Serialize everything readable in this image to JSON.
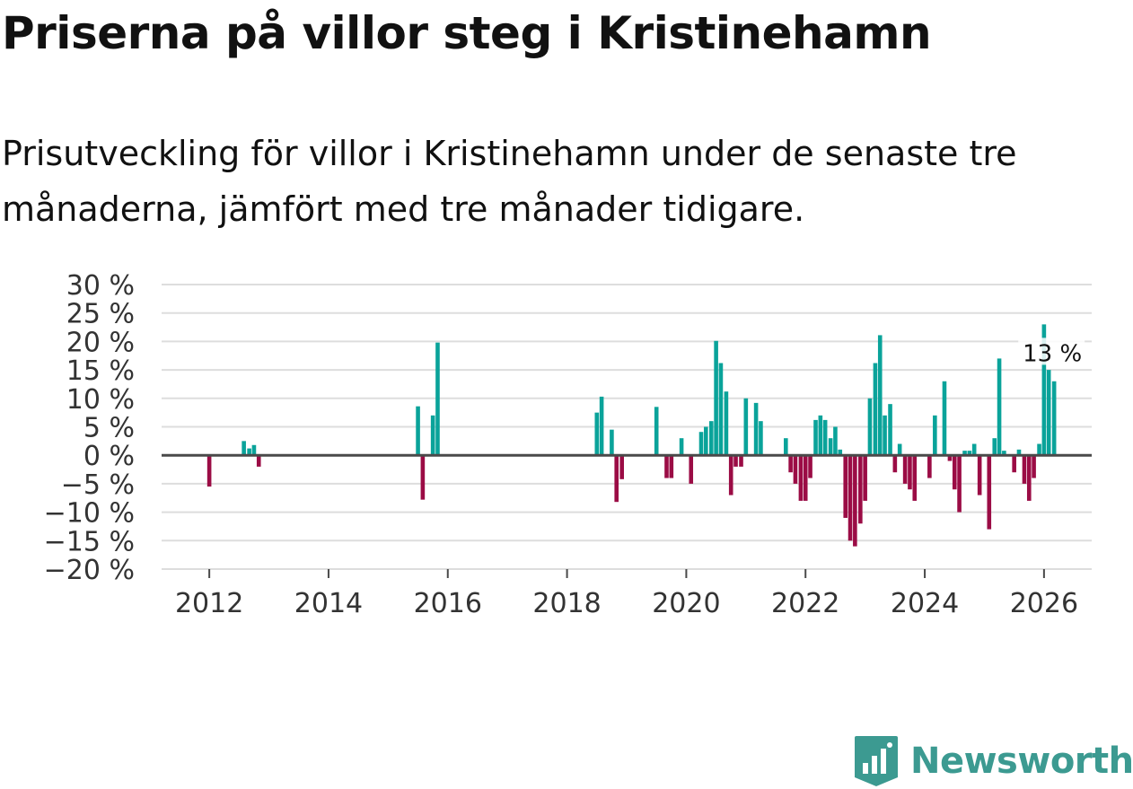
{
  "title": "Priserna på villor steg i Kristinehamn",
  "subtitle": "Prisutveckling för villor i Kristinehamn under de senaste tre månaderna, jämfört med tre månader tidigare.",
  "brand": {
    "name": "Newsworthy",
    "color": "#3c9a91"
  },
  "colors": {
    "positive": "#0aa39a",
    "negative": "#9b0c45",
    "grid": "#dddddd",
    "zero_line": "#4a4a4a",
    "axis_text": "#333333"
  },
  "chart_data": {
    "type": "bar",
    "title": "Priserna på villor steg i Kristinehamn",
    "xlabel": "",
    "ylabel": "",
    "ylim": [
      -20,
      30
    ],
    "yticks": [
      30,
      25,
      20,
      15,
      10,
      5,
      0,
      -5,
      -10,
      -15,
      -20
    ],
    "ytick_labels": [
      "30 %",
      "25 %",
      "20 %",
      "15 %",
      "10 %",
      "5 %",
      "0 %",
      "−5 %",
      "−10 %",
      "−15 %",
      "−20 %"
    ],
    "xlim": [
      2011.2,
      2026.8
    ],
    "xticks": [
      2012,
      2014,
      2016,
      2018,
      2020,
      2022,
      2024,
      2026
    ],
    "xtick_labels": [
      "2012",
      "2014",
      "2016",
      "2018",
      "2020",
      "2022",
      "2024",
      "2026"
    ],
    "grid": true,
    "annotation": {
      "text": "13 %",
      "x": 2026.08,
      "y": 13
    },
    "x": [
      2012.0,
      2012.58,
      2012.67,
      2012.75,
      2012.83,
      2015.5,
      2015.58,
      2015.75,
      2015.83,
      2018.5,
      2018.58,
      2018.75,
      2018.83,
      2018.92,
      2019.5,
      2019.67,
      2019.75,
      2019.92,
      2020.08,
      2020.25,
      2020.33,
      2020.42,
      2020.5,
      2020.58,
      2020.67,
      2020.75,
      2020.83,
      2020.92,
      2021.0,
      2021.08,
      2021.17,
      2021.25,
      2021.33,
      2021.67,
      2021.75,
      2021.83,
      2021.92,
      2022.0,
      2022.08,
      2022.17,
      2022.25,
      2022.33,
      2022.42,
      2022.5,
      2022.58,
      2022.67,
      2022.75,
      2022.83,
      2022.92,
      2023.0,
      2023.08,
      2023.17,
      2023.25,
      2023.33,
      2023.42,
      2023.5,
      2023.58,
      2023.67,
      2023.75,
      2023.83,
      2023.92,
      2024.08,
      2024.17,
      2024.33,
      2024.42,
      2024.5,
      2024.58,
      2024.67,
      2024.75,
      2024.83,
      2024.92,
      2025.08,
      2025.17,
      2025.25,
      2025.33,
      2025.5,
      2025.58,
      2025.67,
      2025.75,
      2025.83,
      2025.92,
      2026.0,
      2026.08,
      2026.17
    ],
    "values": [
      -5.5,
      2.5,
      1.2,
      1.8,
      -2.0,
      8.6,
      -7.8,
      7.0,
      19.8,
      7.5,
      10.3,
      4.5,
      -8.2,
      -4.2,
      8.5,
      -4.0,
      -4.0,
      3.0,
      -5.0,
      4.1,
      5.0,
      6.0,
      20.1,
      16.2,
      11.2,
      -7.0,
      -2.0,
      -2.0,
      10.0,
      0.0,
      9.2,
      6.0,
      0.0,
      3.0,
      -3.0,
      -5.0,
      -8.0,
      -8.0,
      -4.0,
      6.2,
      7.0,
      6.2,
      3.0,
      5.0,
      1.0,
      -11.0,
      -15.0,
      -16.0,
      -12.0,
      -8.0,
      10.0,
      16.2,
      21.1,
      7.0,
      9.0,
      -3.0,
      2.0,
      -5.0,
      -6.0,
      -8.0,
      0.0,
      -4.0,
      7.0,
      13.0,
      -1.0,
      -6.0,
      -10.0,
      0.8,
      0.8,
      2.0,
      -7.0,
      -13.0,
      3.0,
      17.0,
      0.8,
      -3.0,
      1.0,
      -5.0,
      -8.0,
      -4.0,
      2.0,
      23.0,
      15.0,
      13.0
    ]
  }
}
